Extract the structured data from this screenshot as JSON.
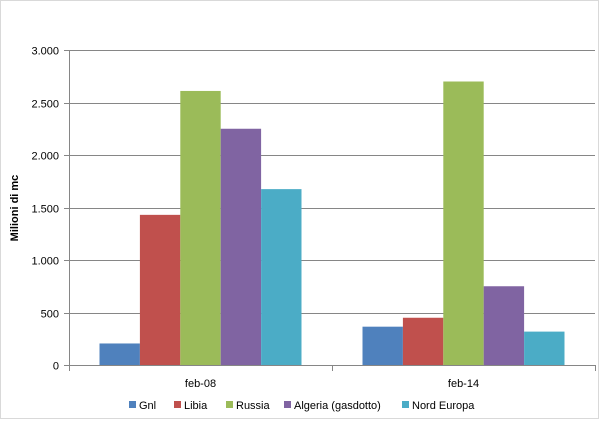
{
  "chart_data": {
    "type": "bar",
    "title": "",
    "xlabel": "",
    "ylabel": "Milioni di mc",
    "ylim": [
      0,
      3000
    ],
    "yticks": [
      0,
      500,
      1000,
      1500,
      2000,
      2500,
      3000
    ],
    "ytick_labels": [
      "0",
      "500",
      "1.000",
      "1.500",
      "2.000",
      "2.500",
      "3.000"
    ],
    "categories": [
      "feb-08",
      "feb-14"
    ],
    "series": [
      {
        "name": "Gnl",
        "color": "#4F81BD",
        "values": [
          205,
          365
        ]
      },
      {
        "name": "Libia",
        "color": "#C0504D",
        "values": [
          1430,
          450
        ]
      },
      {
        "name": "Russia",
        "color": "#9BBB59",
        "values": [
          2610,
          2700
        ]
      },
      {
        "name": "Algeria (gasdotto)",
        "color": "#8064A2",
        "values": [
          2250,
          750
        ]
      },
      {
        "name": "Nord Europa",
        "color": "#4BACC6",
        "values": [
          1675,
          318
        ]
      }
    ],
    "grid": true,
    "legend_position": "bottom"
  }
}
